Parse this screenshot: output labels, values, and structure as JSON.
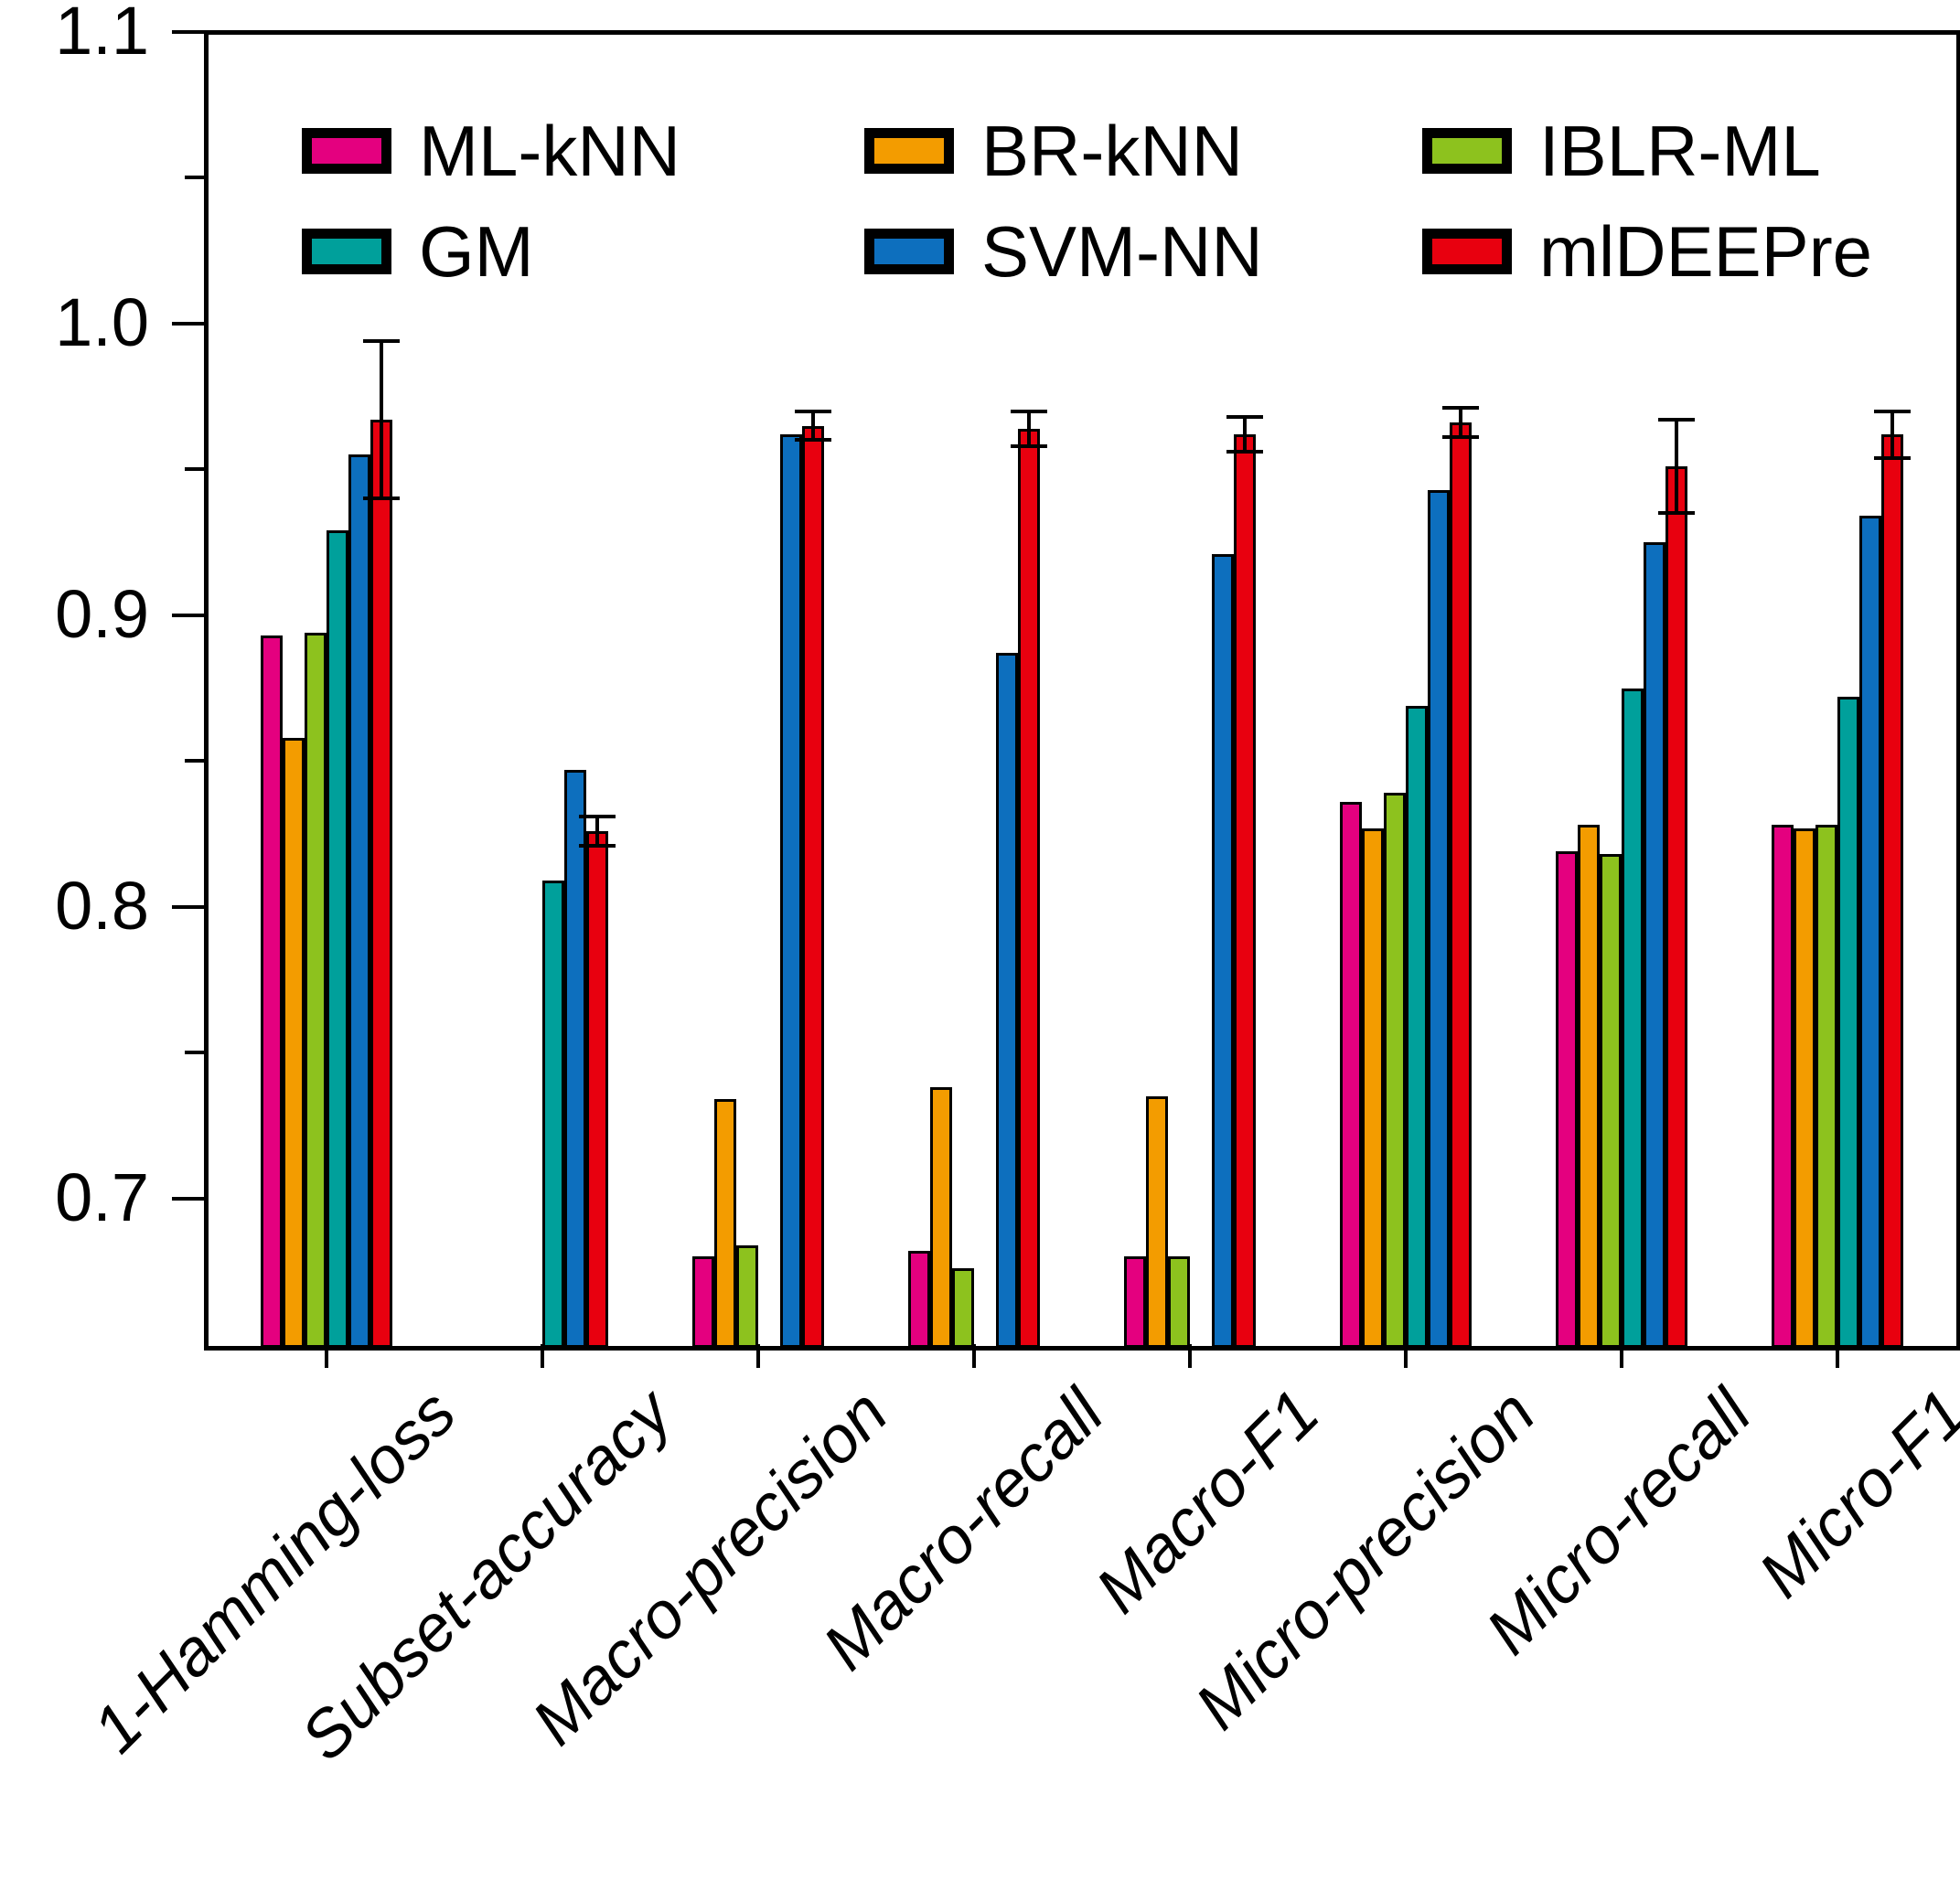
{
  "chart_data": {
    "type": "bar",
    "title": "",
    "xlabel": "",
    "ylabel": "",
    "categories": [
      "1-Hamming-loss",
      "Subset-accuracy",
      "Macro-precision",
      "Macro-recall",
      "Macro-F1",
      "Micro-precision",
      "Micro-recall",
      "Micro-F1"
    ],
    "series": [
      {
        "name": "ML-kNN",
        "color": "#E4007F",
        "values": [
          0.893,
          null,
          0.68,
          0.682,
          0.68,
          0.836,
          0.819,
          0.828
        ]
      },
      {
        "name": "BR-kNN",
        "color": "#F39C00",
        "values": [
          0.858,
          null,
          0.734,
          0.738,
          0.735,
          0.827,
          0.828,
          0.827
        ]
      },
      {
        "name": "IBLR-ML",
        "color": "#8DC21E",
        "values": [
          0.894,
          null,
          0.684,
          0.676,
          0.68,
          0.839,
          0.818,
          0.828
        ]
      },
      {
        "name": "GM",
        "color": "#00A09B",
        "values": [
          0.929,
          0.809,
          null,
          null,
          null,
          0.869,
          0.875,
          0.872
        ]
      },
      {
        "name": "SVM-NN",
        "color": "#0D6FBE",
        "values": [
          0.955,
          0.847,
          0.962,
          0.887,
          0.921,
          0.943,
          0.925,
          0.934
        ]
      },
      {
        "name": "mlDEEPre",
        "color": "#E8000F",
        "values": [
          0.967,
          0.826,
          0.965,
          0.964,
          0.962,
          0.966,
          0.951,
          0.962
        ],
        "errors": [
          0.027,
          0.005,
          0.005,
          0.006,
          0.006,
          0.005,
          0.016,
          0.008
        ]
      }
    ],
    "ylim": [
      0.65,
      1.1
    ],
    "ytick_values": [
      0.7,
      0.8,
      0.9,
      1.0,
      1.1
    ],
    "ytick_labels": [
      "0.7",
      "0.8",
      "0.9",
      "1.0",
      "1.1"
    ],
    "ytick_minor_values": [
      0.75,
      0.85,
      0.95,
      1.05
    ],
    "grid": false,
    "bar_outline_color": "#000000",
    "legend": {
      "position": "top-inside",
      "columns": [
        [
          "ML-kNN",
          "GM"
        ],
        [
          "BR-kNN",
          "SVM-NN"
        ],
        [
          "IBLR-ML",
          "mlDEEPre"
        ]
      ]
    }
  }
}
